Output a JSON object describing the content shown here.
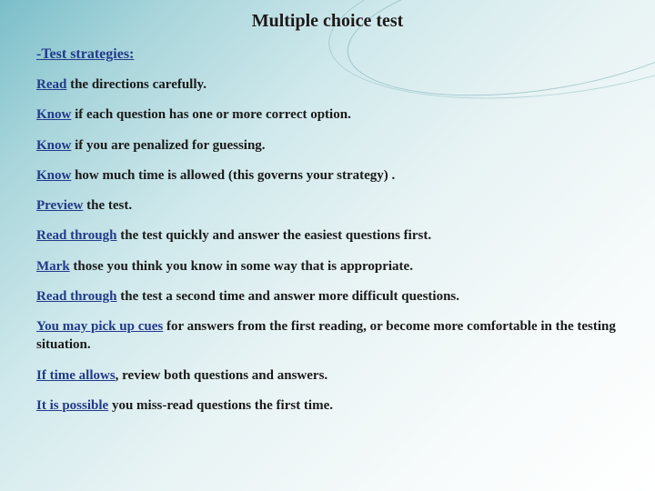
{
  "background": {
    "gradient_start": "#7abec9",
    "gradient_mid": "#d0e9ec",
    "gradient_end": "#ffffff",
    "curve_color": "rgba(60,130,140,0.35)"
  },
  "typography": {
    "font_family": "Georgia, Times New Roman, serif",
    "title_fontsize": 20,
    "subtitle_fontsize": 16,
    "body_fontsize": 15,
    "highlight_color": "#223a8a",
    "text_color": "#1a1a1a"
  },
  "title": "Multiple choice test",
  "subtitle_hl": "-Test strategies:",
  "lines": [
    {
      "hl": "Read",
      "rest": " the directions carefully."
    },
    {
      "hl": "Know",
      "rest": " if each question has one or more correct option."
    },
    {
      "hl": "Know",
      "rest": " if you are penalized for guessing."
    },
    {
      "hl": "Know",
      "rest": " how much time is allowed (this governs your strategy) ."
    },
    {
      "hl": "Preview",
      "rest": " the test."
    },
    {
      "hl": "Read through",
      "rest": " the test quickly and answer the easiest questions first."
    },
    {
      "hl": "Mark",
      "rest": " those you think you know in some way that is appropriate."
    },
    {
      "hl": "Read through",
      "rest": " the test a second time and answer more difficult questions."
    },
    {
      "hl": "You may pick up cues",
      "rest": " for answers from the first reading, or become more comfortable in the testing situation."
    },
    {
      "hl": "If time allows",
      "rest": ", review both questions and answers."
    },
    {
      "hl": "It is possible",
      "rest": " you miss-read questions the first time."
    }
  ]
}
